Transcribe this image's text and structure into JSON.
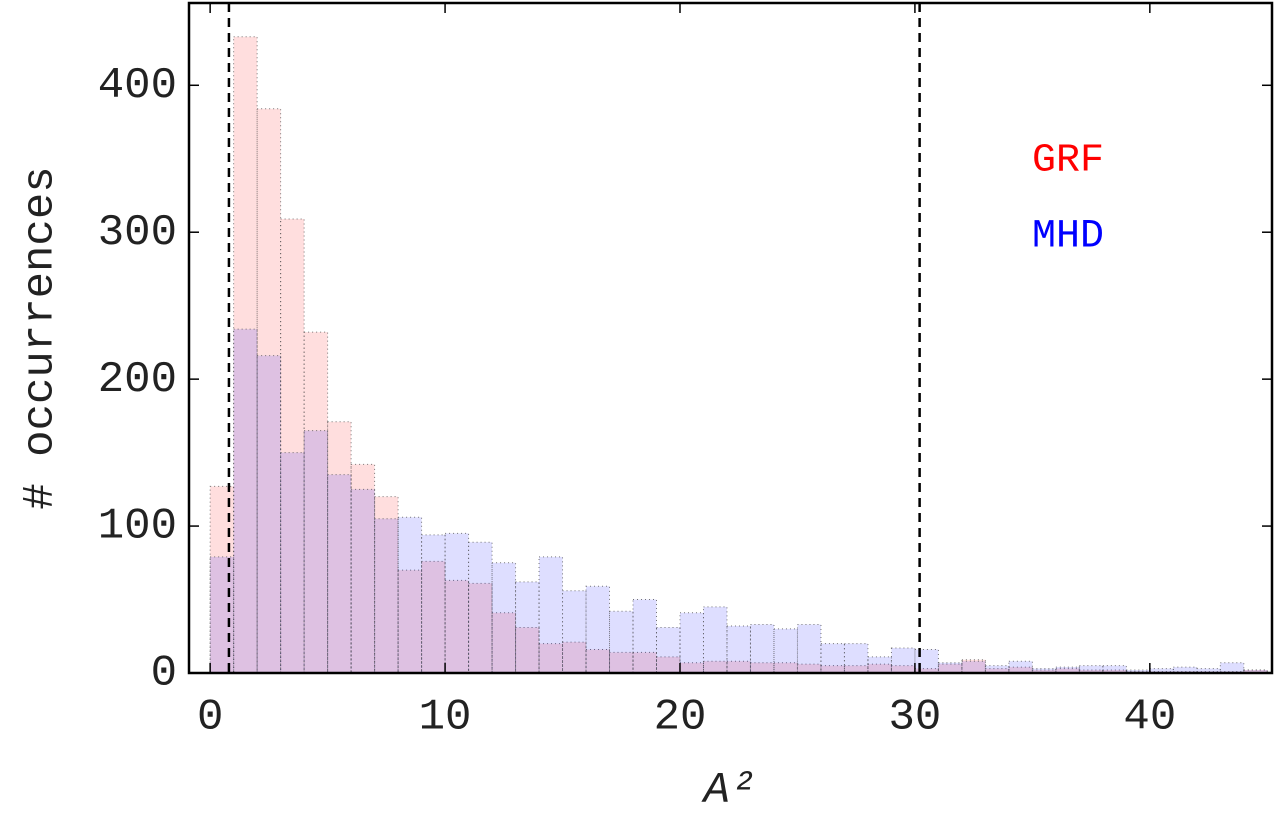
{
  "chart_data": {
    "type": "histogram",
    "xlabel": "A²",
    "ylabel": "# occurrences",
    "bins": [
      0,
      1,
      2,
      3,
      4,
      5,
      6,
      7,
      8,
      9,
      10,
      11,
      12,
      13,
      14,
      15,
      16,
      17,
      18,
      19,
      20,
      21,
      22,
      23,
      24,
      25,
      26,
      27,
      28,
      29,
      30,
      31,
      32,
      33,
      34,
      35,
      36,
      37,
      38,
      39,
      40,
      41,
      42,
      43,
      44,
      45
    ],
    "series": [
      {
        "name": "GRF",
        "color": "#ff0000",
        "values": [
          127,
          433,
          384,
          309,
          232,
          171,
          142,
          120,
          70,
          76,
          63,
          61,
          41,
          31,
          20,
          21,
          16,
          14,
          14,
          11,
          7,
          8,
          8,
          7,
          7,
          6,
          5,
          5,
          6,
          5,
          3,
          6,
          9,
          3,
          4,
          2,
          3,
          2,
          2,
          1,
          1,
          1,
          1,
          1,
          2
        ]
      },
      {
        "name": "MHD",
        "color": "#0000ff",
        "values": [
          79,
          234,
          216,
          150,
          165,
          135,
          125,
          105,
          106,
          94,
          95,
          89,
          75,
          62,
          79,
          56,
          59,
          42,
          50,
          31,
          41,
          45,
          32,
          33,
          30,
          33,
          20,
          20,
          11,
          17,
          16,
          7,
          8,
          5,
          8,
          3,
          4,
          5,
          5,
          2,
          3,
          4,
          3,
          7,
          2
        ]
      }
    ],
    "vlines": [
      0.8,
      30.2
    ],
    "xlim": [
      -0.9,
      45.2
    ],
    "ylim": [
      0,
      456
    ],
    "xticks": [
      0,
      10,
      20,
      30,
      40
    ],
    "yticks": [
      0,
      100,
      200,
      300,
      400
    ]
  }
}
